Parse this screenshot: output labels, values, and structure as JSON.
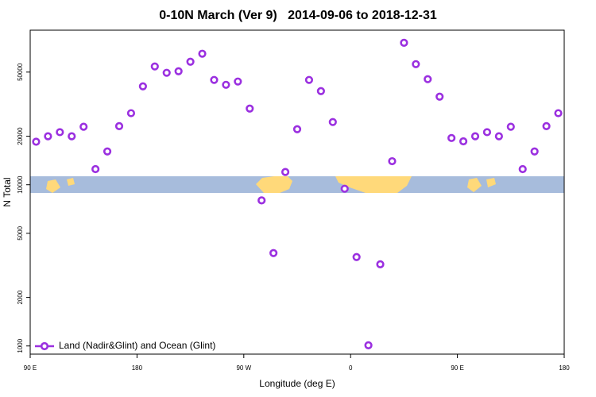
{
  "chart_data": {
    "type": "scatter",
    "title": "0-10N March (Ver 9)   2014-09-06 to 2018-12-31",
    "x_label": "Longitude (deg E)",
    "y_label": "N Total",
    "y_scale": "log",
    "legend_position": "bottom-left",
    "xlim": [
      90,
      540
    ],
    "ylim": [
      890,
      91000
    ],
    "xticks": [
      {
        "value": 90,
        "label": "90 E"
      },
      {
        "value": 180,
        "label": "180"
      },
      {
        "value": 270,
        "label": "90 W"
      },
      {
        "value": 360,
        "label": "0"
      },
      {
        "value": 450,
        "label": "90 E"
      },
      {
        "value": 540,
        "label": "180"
      }
    ],
    "yticks": [
      1000,
      2000,
      5000,
      10000,
      20000,
      50000
    ],
    "series": [
      {
        "name": "Land (Nadir&Glint) and Ocean (Glint)",
        "color": "#9b30e0",
        "x": [
          95,
          105,
          115,
          125,
          135,
          145,
          155,
          165,
          175,
          185,
          195,
          205,
          215,
          225,
          235,
          245,
          255,
          265,
          275,
          285,
          295,
          305,
          315,
          325,
          335,
          345,
          355,
          365,
          375,
          385,
          395,
          405,
          415,
          425,
          435,
          445,
          455,
          465,
          475,
          485,
          495,
          505,
          515,
          525,
          535
        ],
        "values": [
          18500,
          20000,
          21200,
          20000,
          22900,
          12500,
          16100,
          23100,
          27800,
          40800,
          54200,
          49500,
          50600,
          58000,
          65000,
          44700,
          41700,
          43700,
          29700,
          8000,
          3770,
          12000,
          22100,
          44700,
          38100,
          24500,
          9450,
          3560,
          1010,
          3210,
          14000,
          76000,
          56000,
          45200,
          35200,
          19500,
          18600,
          20000,
          21200,
          20000,
          22900,
          12500,
          16100,
          23100,
          27800
        ]
      }
    ]
  }
}
